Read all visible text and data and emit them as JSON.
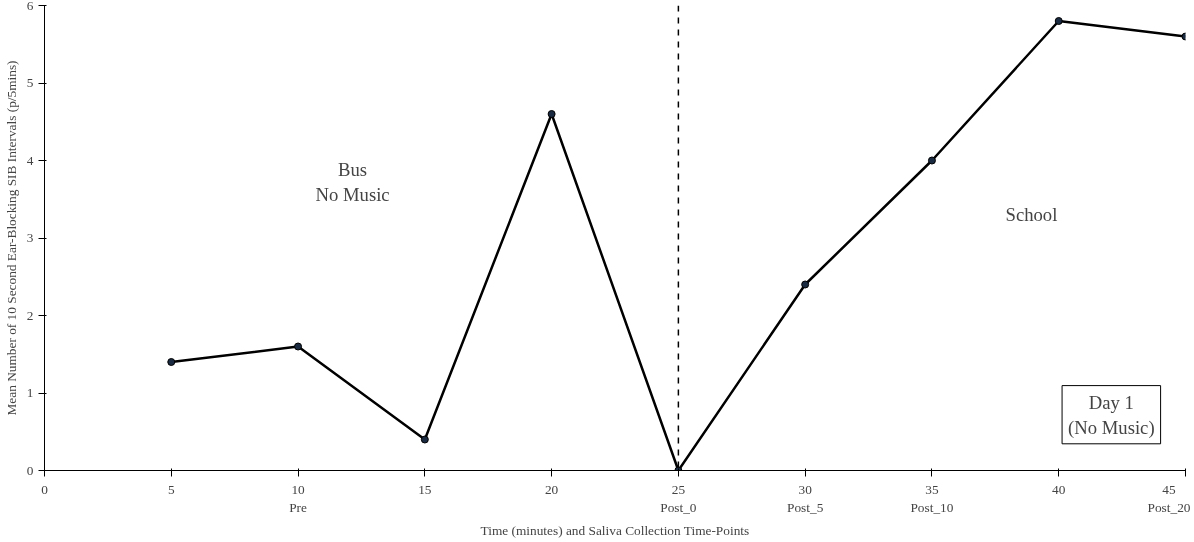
{
  "chart_data": {
    "type": "line",
    "xlabel": "Time (minutes) and Saliva Collection Time-Points",
    "ylabel": "Mean Number of 10 Second Ear-Blocking SIB Intervals (p/5mins)",
    "x": [
      5,
      10,
      15,
      20,
      25,
      30,
      35,
      40,
      45
    ],
    "series": [
      {
        "color": "#000000",
        "values": [
          1.4,
          1.6,
          0.4,
          4.6,
          0,
          2.4,
          4.0,
          5.8,
          5.6
        ]
      }
    ],
    "marker": "circle",
    "line_style": "solid",
    "grid": false,
    "xlim": [
      0,
      45
    ],
    "ylim": [
      0,
      6
    ],
    "xticks": [
      0,
      5,
      {
        "value": 10,
        "label": "10\nPre"
      },
      15,
      20,
      {
        "value": 25,
        "label": "25\nPost_0"
      },
      {
        "value": 30,
        "label": "30\nPost_5"
      },
      {
        "value": 35,
        "label": "35\nPost_10"
      },
      40,
      {
        "value": 45,
        "label": "45\nPost_20"
      }
    ],
    "yticks": [
      0,
      1,
      2,
      3,
      4,
      5,
      6
    ],
    "ref_lines": [
      {
        "axis": "x",
        "value": 25,
        "color": "#000000",
        "line_style": "dashed"
      }
    ],
    "annotations": [
      "Bus\nNo Music",
      "School",
      "Day 1\n(No Music)"
    ]
  }
}
